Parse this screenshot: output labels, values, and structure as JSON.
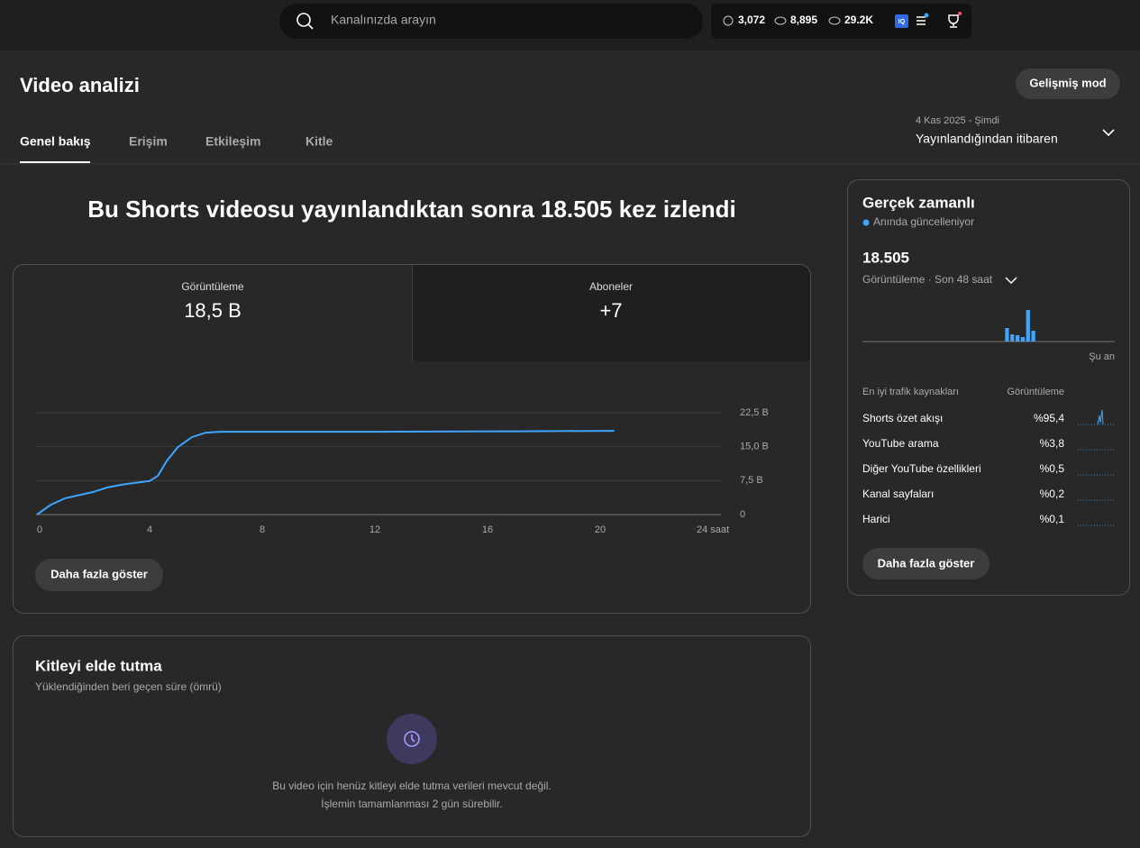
{
  "topbar": {
    "search_placeholder": "Kanalınızda arayın",
    "stats": [
      "3,072",
      "8,895",
      "29.2K"
    ],
    "badge": "IQ"
  },
  "header": {
    "title": "Video analizi",
    "advanced_button": "Gelişmiş mod"
  },
  "tabs": [
    "Genel bakış",
    "Erişim",
    "Etkileşim",
    "Kitle"
  ],
  "date_range": {
    "dates": "4 Kas 2025 - Şimdi",
    "label": "Yayınlandığından itibaren"
  },
  "headline": "Bu Shorts videosu yayınlandıktan sonra 18.505 kez izlendi",
  "metrics": [
    {
      "label": "Görüntüleme",
      "value": "18,5 B"
    },
    {
      "label": "Aboneler",
      "value": "+7"
    }
  ],
  "more_button": "Daha fazla göster",
  "chart_data": [
    {
      "type": "line",
      "color": "#3ea6ff",
      "grid": true,
      "x": [
        0,
        0.5,
        1,
        2,
        2.5,
        3,
        3.5,
        4,
        4.3,
        4.6,
        5,
        5.5,
        6,
        6.5,
        12,
        17,
        20.5
      ],
      "values": [
        0,
        2.2,
        3.6,
        5.0,
        6.0,
        6.6,
        7.0,
        7.4,
        8.6,
        11.8,
        14.9,
        17.1,
        18.1,
        18.3,
        18.3,
        18.4,
        18.5
      ],
      "xlim": [
        0,
        24
      ],
      "xticks": [
        0,
        4,
        8,
        12,
        16,
        20,
        {
          "value": 24,
          "label": "24 saat"
        }
      ],
      "ylim": [
        0,
        22.5
      ],
      "yticks": [
        0,
        {
          "value": 7.5,
          "label": "7,5 B"
        },
        {
          "value": 15,
          "label": "15,0 B"
        },
        {
          "value": 22.5,
          "label": "22,5 B"
        }
      ]
    },
    {
      "type": "bar",
      "color": "#3ea6ff",
      "annotation": "Şu an",
      "ylim": [
        0,
        40
      ],
      "values": [
        0,
        0,
        0,
        0,
        0,
        0,
        0,
        0,
        0,
        0,
        0,
        0,
        0,
        0,
        0,
        0,
        0,
        0,
        0,
        0,
        0,
        0,
        0,
        0,
        0,
        0,
        0,
        15,
        8,
        7,
        5,
        35,
        12,
        0,
        0,
        0,
        0,
        0,
        0,
        0,
        0,
        0,
        0,
        0,
        0,
        0,
        0,
        0
      ]
    }
  ],
  "realtime": {
    "title": "Gerçek zamanlı",
    "status": "Anında güncelleniyor",
    "value": "18.505",
    "period": "Görüntüleme · Son 48 saat",
    "sources_header": "En iyi trafik kaynakları",
    "share_header": "Görüntüleme",
    "sources": [
      {
        "name": "Shorts özet akışı",
        "share": "%95,4"
      },
      {
        "name": "YouTube arama",
        "share": "%3,8"
      },
      {
        "name": "Diğer YouTube özellikleri",
        "share": "%0,5"
      },
      {
        "name": "Kanal sayfaları",
        "share": "%0,2"
      },
      {
        "name": "Harici",
        "share": "%0,1"
      }
    ],
    "more_button": "Daha fazla göster"
  },
  "retention": {
    "title": "Kitleyi elde tutma",
    "subtitle": "Yüklendiğinden beri geçen süre (ömrü)",
    "message": [
      "Bu video için henüz kitleyi elde tutma verileri mevcut değil.",
      "İşlemin tamamlanması 2 gün sürebilir."
    ]
  }
}
